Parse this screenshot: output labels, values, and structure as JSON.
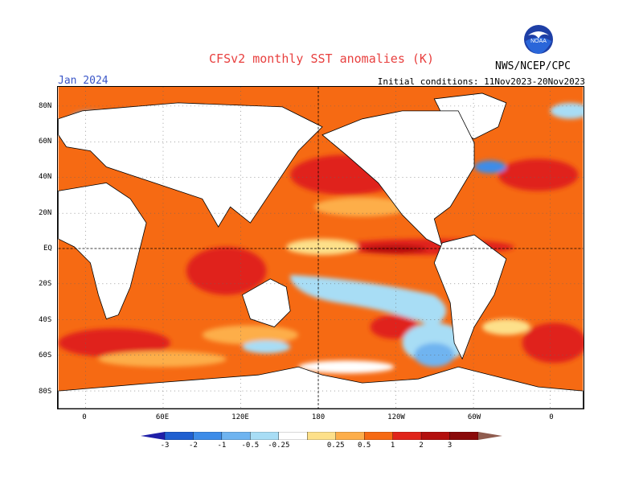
{
  "header": {
    "title": "CFSv2 monthly SST anomalies (K)",
    "valid_month": "Jan 2024",
    "initial_conditions": "Initial conditions: 11Nov2023-20Nov2023",
    "agency": "NWS/NCEP/CPC",
    "logo_text": "NOAA"
  },
  "axes": {
    "lat_labels": [
      "80N",
      "60N",
      "40N",
      "20N",
      "EQ",
      "20S",
      "40S",
      "60S",
      "80S"
    ],
    "lon_labels": [
      "0",
      "60E",
      "120E",
      "180",
      "120W",
      "60W",
      "0"
    ]
  },
  "legend": {
    "unit": "K",
    "labels": [
      "-3",
      "-2",
      "-1",
      "-0.5",
      "-0.25",
      "0.25",
      "0.5",
      "1",
      "2",
      "3"
    ],
    "colors": [
      "#1f1fa8",
      "#1f5fd0",
      "#3d8ce8",
      "#6fb4f0",
      "#a8ddf5",
      "#ffffff",
      "#fde08a",
      "#fdae4a",
      "#f66a13",
      "#e0241a",
      "#b3100e",
      "#8a0a0a",
      "#8f5c4f"
    ]
  },
  "map": {
    "background": "#ffffff",
    "land_color": "#ffffff",
    "anomaly_summary": "Strong warm anomalies along the equatorial Pacific and widespread warmth in most oceans; cool anomalies in parts of the South Pacific and Southern Ocean."
  }
}
